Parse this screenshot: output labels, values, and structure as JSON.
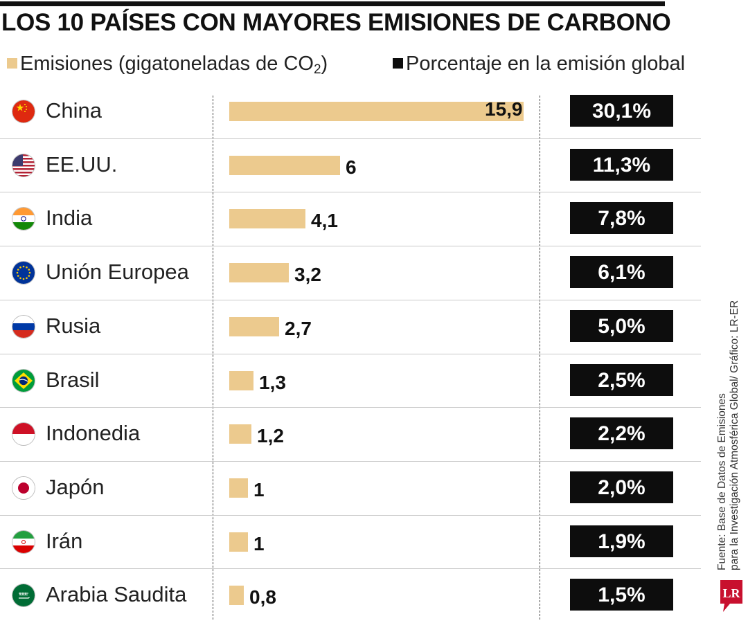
{
  "title": "LOS 10 PAÍSES CON MAYORES EMISIONES DE CARBONO",
  "legend": {
    "emissions_label": "Emisiones (gigatoneladas de CO",
    "emissions_sub": "2",
    "emissions_close": ")",
    "percentage_label": "Porcentaje en la emisión global"
  },
  "colors": {
    "bar": "#ecca8e",
    "pct_box": "#0d0d0d"
  },
  "chart_data": {
    "type": "bar",
    "categories": [
      "China",
      "EE.UU.",
      "India",
      "Unión Europea",
      "Rusia",
      "Brasil",
      "Indonedia",
      "Japón",
      "Irán",
      "Arabia Saudita"
    ],
    "series": [
      {
        "name": "Emisiones (gigatoneladas de CO2)",
        "values": [
          15.9,
          6,
          4.1,
          3.2,
          2.7,
          1.3,
          1.2,
          1,
          1,
          0.8
        ]
      },
      {
        "name": "Porcentaje en la emisión global",
        "values": [
          30.1,
          11.3,
          7.8,
          6.1,
          5.0,
          2.5,
          2.2,
          2.0,
          1.9,
          1.5
        ]
      }
    ],
    "value_labels": [
      "15,9",
      "6",
      "4,1",
      "3,2",
      "2,7",
      "1,3",
      "1,2",
      "1",
      "1",
      "0,8"
    ],
    "pct_labels": [
      "30,1%",
      "11,3%",
      "7,8%",
      "6,1%",
      "5,0%",
      "2,5%",
      "2,2%",
      "2,0%",
      "1,9%",
      "1,5%"
    ],
    "flags": [
      "china-flag-icon",
      "usa-flag-icon",
      "india-flag-icon",
      "eu-flag-icon",
      "russia-flag-icon",
      "brazil-flag-icon",
      "indonesia-flag-icon",
      "japan-flag-icon",
      "iran-flag-icon",
      "saudi-arabia-flag-icon"
    ]
  },
  "source": {
    "line1": "Fuente: Base de Datos de Emisiones",
    "line2": "para la Investigación Atmosférica Global/ Gráfico: LR-ER"
  },
  "logo": {
    "text": "LR",
    "color": "#c8102e"
  }
}
